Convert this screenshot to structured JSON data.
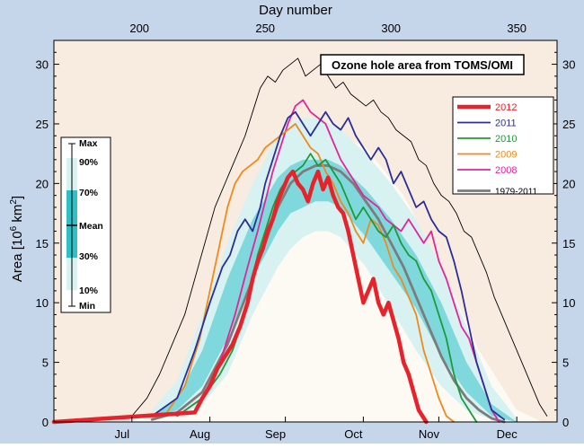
{
  "chart_data": {
    "type": "line",
    "title": "Ozone hole area from TOMS/OMI",
    "top_axis_label": "Day number",
    "top_ticks": [
      200,
      250,
      300,
      350
    ],
    "ylabel_main": "Area [10",
    "ylabel_sup": "6",
    "ylabel_unit": " km",
    "ylabel_sup2": "2",
    "ylabel_close": "]",
    "xlim": [
      166,
      366
    ],
    "ylim": [
      0,
      32
    ],
    "yticks": [
      0,
      5,
      10,
      15,
      20,
      25,
      30
    ],
    "months": [
      {
        "label": "Jul",
        "day": 197
      },
      {
        "label": "Aug",
        "day": 228
      },
      {
        "label": "Sep",
        "day": 258
      },
      {
        "label": "Oct",
        "day": 289
      },
      {
        "label": "Nov",
        "day": 319
      },
      {
        "label": "Dec",
        "day": 350
      }
    ],
    "percentile_legend": {
      "labels": [
        "Max",
        "90%",
        "70%",
        "Mean",
        "30%",
        "10%",
        "Min"
      ]
    },
    "colors": {
      "band_10_90": "#d8f1f1",
      "band_30_70": "#7fd8dc",
      "band_inner": "#2fbfc6",
      "outer_bg": "#f7ecdf",
      "inner_bg": "#fdfaf4"
    },
    "bands": {
      "days": [
        205,
        215,
        225,
        235,
        245,
        255,
        260,
        265,
        270,
        275,
        280,
        290,
        300,
        310,
        320,
        330,
        340,
        350
      ],
      "p10": [
        0.2,
        0.5,
        1.5,
        4,
        9,
        13,
        14.5,
        15.5,
        16,
        16,
        15.5,
        13,
        9.5,
        6,
        3,
        1,
        0.2,
        0
      ],
      "p30": [
        0.3,
        1,
        3,
        7,
        12,
        16,
        17.5,
        18,
        18.5,
        18.5,
        18,
        15.5,
        12.5,
        9.5,
        5.5,
        2.5,
        0.5,
        0
      ],
      "p70": [
        0.5,
        2,
        6,
        12,
        17,
        20.5,
        21.5,
        22,
        22,
        22,
        21.5,
        19.5,
        17,
        14,
        10,
        5,
        1.5,
        0
      ],
      "p90": [
        1,
        3.5,
        9,
        15,
        20,
        24,
        25,
        25.5,
        25.5,
        25,
        24.5,
        22.5,
        20,
        17,
        13,
        8,
        3,
        0.3
      ],
      "envelope_days": [
        196,
        210,
        225,
        240,
        255,
        265,
        275,
        290,
        305,
        320,
        335,
        350,
        360
      ],
      "envelope_vals": [
        0.2,
        1,
        4,
        12,
        20,
        23,
        24.5,
        23,
        19,
        13,
        6,
        1,
        0
      ]
    },
    "series": [
      {
        "name": "2012",
        "color": "#e8222a",
        "width": 4.5,
        "x": [
          166,
          222,
          225,
          228,
          231,
          234,
          237,
          240,
          243,
          245,
          247,
          249,
          251,
          253,
          255,
          257,
          259,
          261,
          263,
          265,
          267,
          269,
          271,
          273,
          275,
          277,
          279,
          281,
          283,
          285,
          287,
          289,
          291,
          293,
          295,
          297,
          299,
          301,
          303,
          305,
          307,
          309,
          311,
          314
        ],
        "y": [
          0,
          0.8,
          2,
          3,
          4.5,
          5.5,
          6.5,
          8,
          10,
          12,
          13.5,
          14.5,
          16,
          17,
          18.5,
          19.5,
          20.5,
          21,
          20,
          19.5,
          18.5,
          20,
          21,
          19.5,
          20.5,
          19,
          18,
          17.5,
          16,
          14,
          12,
          10,
          11,
          12,
          10,
          9,
          10,
          8.5,
          7,
          5,
          4,
          2.5,
          1,
          0
        ]
      },
      {
        "name": "2011",
        "color": "#2b2e9a",
        "width": 1.8,
        "x": [
          205,
          215,
          222,
          228,
          233,
          236,
          239,
          242,
          245,
          248,
          250,
          253,
          256,
          259,
          262,
          265,
          268,
          271,
          274,
          277,
          280,
          283,
          286,
          289,
          292,
          295,
          298,
          301,
          304,
          307,
          310,
          313,
          316,
          319,
          322,
          325,
          328,
          331,
          334,
          337,
          340,
          345
        ],
        "y": [
          0.5,
          2,
          6,
          10,
          13,
          14,
          16,
          17,
          16,
          18,
          20,
          22,
          24,
          25.5,
          26,
          25,
          24,
          25,
          26,
          25,
          24.5,
          25.5,
          24,
          23,
          22,
          23,
          22,
          20,
          21,
          19.5,
          18,
          18.5,
          17,
          16,
          15.5,
          13.5,
          11,
          8,
          5,
          3,
          1,
          0.2
        ]
      },
      {
        "name": "2010",
        "color": "#1d9a3a",
        "width": 1.8,
        "x": [
          215,
          225,
          232,
          237,
          241,
          244,
          247,
          250,
          253,
          256,
          259,
          262,
          265,
          268,
          271,
          274,
          277,
          280,
          283,
          286,
          289,
          292,
          295,
          298,
          301,
          304,
          307,
          310,
          313,
          316,
          319,
          322,
          325,
          328,
          331,
          334
        ],
        "y": [
          0.5,
          2,
          4,
          6,
          8.5,
          11,
          14,
          16,
          18,
          19.5,
          20.5,
          21,
          21.5,
          22.5,
          21.5,
          22,
          21,
          20,
          18.5,
          17,
          18,
          17,
          16,
          15.5,
          16.5,
          15,
          14,
          13.5,
          12,
          11,
          9,
          7,
          4,
          2,
          1,
          0
        ]
      },
      {
        "name": "2009",
        "color": "#f08a1c",
        "width": 1.8,
        "x": [
          210,
          218,
          224,
          228,
          232,
          235,
          238,
          241,
          244,
          247,
          250,
          253,
          256,
          259,
          262,
          265,
          268,
          271,
          274,
          277,
          280,
          283,
          286,
          289,
          292,
          295,
          298,
          301,
          304,
          307,
          310,
          313,
          316,
          319,
          322,
          325
        ],
        "y": [
          0.5,
          3,
          7,
          11,
          15,
          18,
          20,
          21,
          21.5,
          22,
          23,
          23.5,
          24,
          24.5,
          25,
          24,
          23,
          22.5,
          21,
          20,
          18.5,
          17.5,
          16,
          15,
          17,
          16.5,
          15,
          13,
          12,
          10.5,
          9,
          6,
          4,
          2,
          0.5,
          0
        ]
      },
      {
        "name": "2008",
        "color": "#e2259a",
        "width": 1.8,
        "x": [
          215,
          225,
          232,
          238,
          243,
          247,
          250,
          253,
          256,
          259,
          262,
          265,
          268,
          271,
          274,
          277,
          280,
          283,
          286,
          289,
          292,
          295,
          298,
          301,
          304,
          307,
          310,
          313,
          316,
          319,
          322,
          325,
          328,
          331,
          334,
          337,
          340,
          343
        ],
        "y": [
          0.5,
          2,
          5,
          9,
          13,
          16,
          18.5,
          21,
          23,
          25,
          26.5,
          27,
          26,
          25.5,
          25,
          23.5,
          22,
          21,
          20,
          19,
          18.5,
          18,
          17,
          16.5,
          16,
          17,
          16,
          15,
          16,
          13.5,
          12,
          10,
          8,
          7,
          5,
          3,
          1,
          0
        ]
      },
      {
        "name": "1979-2011",
        "color": "#7c7c7c",
        "width": 2.8,
        "x": [
          205,
          215,
          225,
          235,
          245,
          250,
          255,
          260,
          265,
          270,
          275,
          280,
          285,
          290,
          295,
          300,
          305,
          310,
          315,
          320,
          325,
          330,
          335,
          340,
          345
        ],
        "y": [
          0.2,
          0.8,
          2.5,
          6.5,
          12,
          15,
          18,
          20,
          21,
          21.5,
          21.5,
          21,
          20,
          18.5,
          17,
          15,
          13,
          10.5,
          8,
          5.5,
          3.5,
          2,
          1,
          0.3,
          0
        ]
      },
      {
        "name": "max",
        "color": "#000000",
        "width": 0.9,
        "x": [
          197,
          203,
          208,
          213,
          218,
          222,
          226,
          230,
          234,
          238,
          242,
          245,
          248,
          251,
          254,
          257,
          260,
          263,
          266,
          269,
          272,
          275,
          278,
          281,
          284,
          287,
          290,
          293,
          296,
          299,
          302,
          305,
          308,
          311,
          314,
          317,
          320,
          323,
          326,
          329,
          332,
          335,
          338,
          341,
          344,
          347,
          350,
          353,
          356,
          359,
          362
        ],
        "y": [
          0.5,
          2,
          4,
          6.5,
          9,
          12,
          15,
          18,
          20,
          22,
          24,
          26,
          28,
          29,
          28.5,
          29.5,
          30,
          30.5,
          29,
          29.5,
          30,
          29,
          28,
          28.5,
          27.5,
          27,
          26.5,
          27,
          26,
          25.5,
          24.5,
          24,
          23.5,
          22,
          21.5,
          20,
          19,
          18.5,
          17.5,
          16,
          15.5,
          14,
          12.5,
          10.5,
          9,
          7.5,
          6,
          4.5,
          3,
          1.5,
          0.5
        ]
      }
    ],
    "legend": {
      "position": "top-right",
      "entries": [
        "2012",
        "2011",
        "2010",
        "2009",
        "2008",
        "1979-2011"
      ]
    }
  }
}
